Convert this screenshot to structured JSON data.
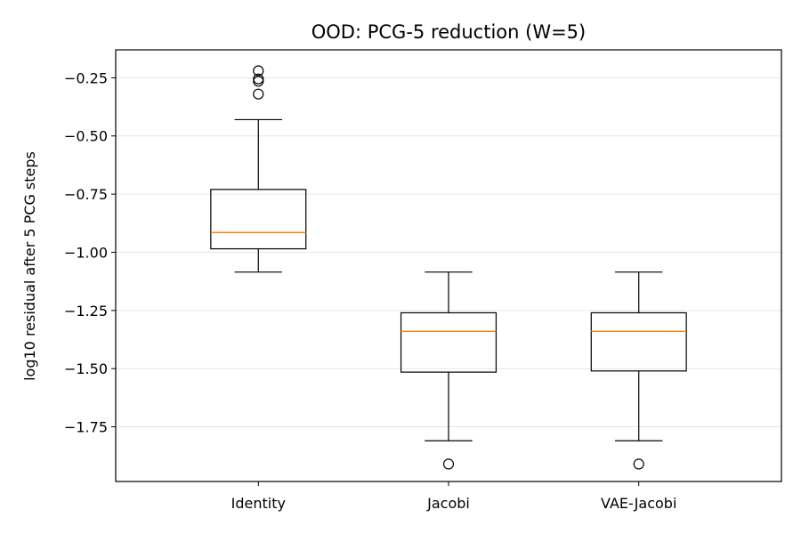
{
  "chart_data": {
    "type": "box",
    "title": "OOD: PCG-5 reduction (W=5)",
    "xlabel": "",
    "ylabel": "log10 residual after 5 PCG steps",
    "ylim": [
      -1.985,
      -0.13
    ],
    "y_ticks": [
      -0.25,
      -0.5,
      -0.75,
      -1.0,
      -1.25,
      -1.5,
      -1.75
    ],
    "y_tick_labels": [
      "−0.25",
      "−0.50",
      "−0.75",
      "−1.00",
      "−1.25",
      "−1.50",
      "−1.75"
    ],
    "grid": "y",
    "categories": [
      "Identity",
      "Jacobi",
      "VAE-Jacobi"
    ],
    "series": [
      {
        "category": "Identity",
        "whisker_low": -1.085,
        "q1": -0.985,
        "median": -0.915,
        "q3": -0.73,
        "whisker_high": -0.43,
        "outliers": [
          -0.22,
          -0.255,
          -0.265,
          -0.32
        ]
      },
      {
        "category": "Jacobi",
        "whisker_low": -1.81,
        "q1": -1.515,
        "median": -1.34,
        "q3": -1.26,
        "whisker_high": -1.085,
        "outliers": [
          -1.91
        ]
      },
      {
        "category": "VAE-Jacobi",
        "whisker_low": -1.81,
        "q1": -1.51,
        "median": -1.34,
        "q3": -1.26,
        "whisker_high": -1.085,
        "outliers": [
          -1.91
        ]
      }
    ],
    "colors": {
      "box": "#000000",
      "median": "#ff7f0e",
      "grid": "#e6e6e6"
    }
  }
}
